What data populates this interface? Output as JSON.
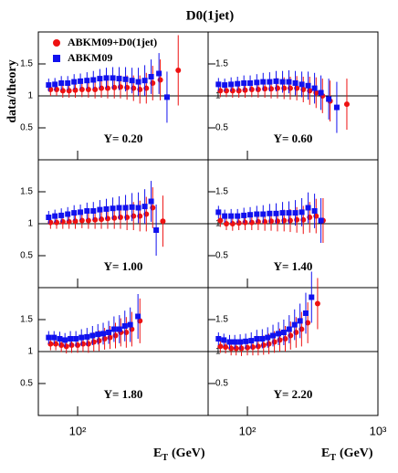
{
  "title": "D0(1jet)",
  "y_label": "data/theory",
  "x_label": {
    "symbol": "E",
    "subscript": "T",
    "unit": "(GeV)"
  },
  "series_styles": [
    {
      "name": "ABKM09+D0(1jet)",
      "color": "#ee1111",
      "marker": "circle"
    },
    {
      "name": "ABKM09",
      "color": "#1111ee",
      "marker": "square"
    }
  ],
  "x_axis": {
    "xlim": [
      50,
      1000
    ],
    "log": true,
    "xticks": [
      {
        "value": 100,
        "label": "10²"
      },
      {
        "value": 1000,
        "label": "10³"
      }
    ]
  },
  "y_axis": {
    "ylim": [
      0,
      2
    ],
    "yticks": [
      0.5,
      1,
      1.5
    ],
    "reference": 1
  },
  "chart_data": [
    {
      "type": "scatter",
      "annotation": "Y= 0.20",
      "series": [
        {
          "x": [
            62,
            69,
            77,
            86,
            96,
            108,
            121,
            136,
            152,
            170,
            191,
            213,
            239,
            268,
            300,
            336,
            376,
            430,
            590
          ],
          "values": [
            1.1,
            1.1,
            1.08,
            1.08,
            1.09,
            1.1,
            1.1,
            1.1,
            1.12,
            1.12,
            1.13,
            1.14,
            1.13,
            1.12,
            1.1,
            1.12,
            1.2,
            1.25,
            1.4
          ],
          "errors": [
            0.1,
            0.1,
            0.11,
            0.11,
            0.12,
            0.12,
            0.13,
            0.14,
            0.15,
            0.16,
            0.17,
            0.18,
            0.19,
            0.2,
            0.22,
            0.24,
            0.27,
            0.32,
            0.55
          ]
        },
        {
          "x": [
            60,
            67,
            75,
            84,
            94,
            105,
            118,
            132,
            148,
            166,
            186,
            208,
            233,
            261,
            292,
            327,
            366,
            420,
            484
          ],
          "values": [
            1.17,
            1.18,
            1.2,
            1.2,
            1.22,
            1.23,
            1.24,
            1.25,
            1.27,
            1.28,
            1.28,
            1.27,
            1.26,
            1.24,
            1.22,
            1.24,
            1.3,
            1.35,
            0.98
          ],
          "errors": [
            0.1,
            0.1,
            0.11,
            0.11,
            0.12,
            0.12,
            0.13,
            0.14,
            0.15,
            0.16,
            0.17,
            0.18,
            0.19,
            0.2,
            0.22,
            0.24,
            0.27,
            0.32,
            0.4
          ]
        }
      ]
    },
    {
      "type": "scatter",
      "annotation": "Y= 0.60",
      "series": [
        {
          "x": [
            62,
            69,
            77,
            86,
            96,
            108,
            121,
            136,
            152,
            170,
            191,
            213,
            239,
            268,
            300,
            336,
            376,
            430,
            578
          ],
          "values": [
            1.08,
            1.08,
            1.08,
            1.08,
            1.09,
            1.1,
            1.1,
            1.11,
            1.11,
            1.12,
            1.12,
            1.12,
            1.12,
            1.1,
            1.08,
            1.05,
            1.0,
            0.92,
            0.87
          ],
          "errors": [
            0.1,
            0.1,
            0.11,
            0.11,
            0.12,
            0.12,
            0.13,
            0.14,
            0.15,
            0.16,
            0.17,
            0.18,
            0.19,
            0.2,
            0.22,
            0.24,
            0.27,
            0.32,
            0.4
          ]
        },
        {
          "x": [
            60,
            67,
            75,
            84,
            94,
            105,
            118,
            132,
            148,
            166,
            186,
            208,
            233,
            261,
            292,
            327,
            366,
            420,
            484
          ],
          "values": [
            1.18,
            1.17,
            1.18,
            1.19,
            1.2,
            1.2,
            1.21,
            1.22,
            1.22,
            1.23,
            1.22,
            1.22,
            1.2,
            1.18,
            1.16,
            1.12,
            1.05,
            0.95,
            0.82
          ],
          "errors": [
            0.1,
            0.1,
            0.11,
            0.11,
            0.12,
            0.12,
            0.13,
            0.14,
            0.15,
            0.16,
            0.17,
            0.18,
            0.19,
            0.2,
            0.22,
            0.24,
            0.27,
            0.32,
            0.4
          ]
        }
      ]
    },
    {
      "type": "scatter",
      "annotation": "Y= 1.00",
      "series": [
        {
          "x": [
            62,
            69,
            77,
            86,
            96,
            108,
            121,
            136,
            152,
            170,
            191,
            213,
            239,
            268,
            300,
            336,
            376,
            450
          ],
          "values": [
            1.02,
            1.02,
            1.03,
            1.03,
            1.04,
            1.05,
            1.05,
            1.06,
            1.07,
            1.08,
            1.09,
            1.1,
            1.1,
            1.12,
            1.12,
            1.15,
            1.25,
            1.04
          ],
          "errors": [
            0.1,
            0.1,
            0.11,
            0.11,
            0.12,
            0.12,
            0.13,
            0.14,
            0.15,
            0.16,
            0.17,
            0.18,
            0.2,
            0.22,
            0.24,
            0.27,
            0.32,
            0.4
          ]
        },
        {
          "x": [
            60,
            67,
            75,
            84,
            94,
            105,
            118,
            132,
            148,
            166,
            186,
            208,
            233,
            261,
            292,
            327,
            366,
            400
          ],
          "values": [
            1.1,
            1.12,
            1.13,
            1.15,
            1.17,
            1.18,
            1.2,
            1.2,
            1.22,
            1.23,
            1.24,
            1.25,
            1.25,
            1.26,
            1.25,
            1.27,
            1.35,
            0.9
          ],
          "errors": [
            0.1,
            0.1,
            0.11,
            0.11,
            0.12,
            0.12,
            0.13,
            0.14,
            0.15,
            0.16,
            0.17,
            0.18,
            0.2,
            0.22,
            0.24,
            0.27,
            0.32,
            0.4
          ]
        }
      ]
    },
    {
      "type": "scatter",
      "annotation": "Y= 1.40",
      "series": [
        {
          "x": [
            62,
            69,
            77,
            86,
            96,
            108,
            121,
            136,
            152,
            170,
            191,
            213,
            239,
            268,
            300,
            336,
            380
          ],
          "values": [
            1.05,
            1.0,
            1.0,
            1.01,
            1.02,
            1.02,
            1.03,
            1.03,
            1.04,
            1.04,
            1.05,
            1.05,
            1.06,
            1.06,
            1.1,
            1.12,
            1.05
          ],
          "errors": [
            0.1,
            0.1,
            0.11,
            0.11,
            0.12,
            0.12,
            0.13,
            0.14,
            0.15,
            0.16,
            0.17,
            0.18,
            0.2,
            0.22,
            0.24,
            0.27,
            0.35
          ]
        },
        {
          "x": [
            60,
            67,
            75,
            84,
            94,
            105,
            118,
            132,
            148,
            166,
            186,
            208,
            233,
            261,
            292,
            327,
            366
          ],
          "values": [
            1.18,
            1.12,
            1.12,
            1.12,
            1.13,
            1.14,
            1.15,
            1.15,
            1.16,
            1.16,
            1.17,
            1.17,
            1.17,
            1.18,
            1.25,
            1.2,
            1.05
          ],
          "errors": [
            0.1,
            0.1,
            0.11,
            0.11,
            0.12,
            0.12,
            0.13,
            0.14,
            0.15,
            0.16,
            0.17,
            0.18,
            0.2,
            0.22,
            0.24,
            0.27,
            0.35
          ]
        }
      ]
    },
    {
      "type": "scatter",
      "annotation": "Y= 1.80",
      "series": [
        {
          "x": [
            62,
            68,
            75,
            82,
            90,
            100,
            110,
            121,
            133,
            146,
            161,
            177,
            195,
            214,
            236,
            260,
            300
          ],
          "values": [
            1.12,
            1.12,
            1.1,
            1.08,
            1.1,
            1.1,
            1.12,
            1.12,
            1.15,
            1.17,
            1.2,
            1.22,
            1.25,
            1.3,
            1.3,
            1.35,
            1.48
          ],
          "errors": [
            0.1,
            0.1,
            0.11,
            0.11,
            0.12,
            0.12,
            0.13,
            0.14,
            0.15,
            0.16,
            0.17,
            0.18,
            0.2,
            0.22,
            0.24,
            0.27,
            0.35
          ]
        },
        {
          "x": [
            60,
            66,
            73,
            80,
            88,
            97,
            107,
            118,
            130,
            143,
            157,
            173,
            190,
            209,
            230,
            253,
            290
          ],
          "values": [
            1.22,
            1.22,
            1.2,
            1.18,
            1.2,
            1.2,
            1.22,
            1.23,
            1.25,
            1.27,
            1.28,
            1.3,
            1.35,
            1.35,
            1.4,
            1.42,
            1.55
          ],
          "errors": [
            0.1,
            0.1,
            0.11,
            0.11,
            0.12,
            0.12,
            0.13,
            0.14,
            0.15,
            0.16,
            0.17,
            0.18,
            0.2,
            0.22,
            0.24,
            0.27,
            0.35
          ]
        }
      ]
    },
    {
      "type": "scatter",
      "annotation": "Y= 2.20",
      "series": [
        {
          "x": [
            62,
            68,
            75,
            82,
            90,
            100,
            110,
            121,
            133,
            146,
            161,
            177,
            195,
            214,
            236,
            260,
            290,
            345
          ],
          "values": [
            1.08,
            1.07,
            1.05,
            1.05,
            1.05,
            1.06,
            1.07,
            1.08,
            1.1,
            1.12,
            1.15,
            1.18,
            1.2,
            1.25,
            1.3,
            1.35,
            1.45,
            1.75
          ],
          "errors": [
            0.1,
            0.1,
            0.11,
            0.11,
            0.12,
            0.12,
            0.13,
            0.14,
            0.15,
            0.16,
            0.17,
            0.18,
            0.2,
            0.22,
            0.24,
            0.27,
            0.32,
            0.4
          ]
        },
        {
          "x": [
            60,
            66,
            73,
            80,
            88,
            97,
            107,
            118,
            130,
            143,
            157,
            173,
            190,
            209,
            230,
            253,
            280,
            310
          ],
          "values": [
            1.2,
            1.18,
            1.15,
            1.15,
            1.15,
            1.16,
            1.17,
            1.2,
            1.2,
            1.22,
            1.25,
            1.28,
            1.3,
            1.35,
            1.42,
            1.48,
            1.6,
            1.85
          ],
          "errors": [
            0.1,
            0.1,
            0.11,
            0.11,
            0.12,
            0.12,
            0.13,
            0.14,
            0.15,
            0.16,
            0.17,
            0.18,
            0.2,
            0.22,
            0.24,
            0.27,
            0.32,
            0.4
          ]
        }
      ]
    }
  ]
}
